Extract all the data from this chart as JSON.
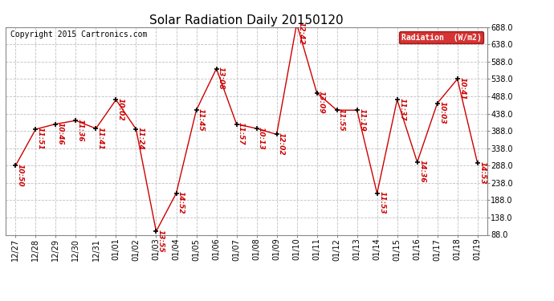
{
  "title": "Solar Radiation Daily 20150120",
  "copyright": "Copyright 2015 Cartronics.com",
  "legend_label": "Radiation  (W/m2)",
  "x_labels": [
    "12/27",
    "12/28",
    "12/29",
    "12/30",
    "12/31",
    "01/01",
    "01/02",
    "01/03",
    "01/04",
    "01/05",
    "01/06",
    "01/07",
    "01/08",
    "01/09",
    "01/10",
    "01/11",
    "01/12",
    "01/13",
    "01/14",
    "01/15",
    "01/16",
    "01/17",
    "01/18",
    "01/19"
  ],
  "values": [
    288,
    393,
    408,
    418,
    395,
    478,
    393,
    98,
    208,
    448,
    568,
    408,
    395,
    378,
    698,
    498,
    448,
    448,
    208,
    478,
    298,
    468,
    538,
    295
  ],
  "time_labels": [
    "10:50",
    "11:51",
    "10:46",
    "11:36",
    "11:41",
    "10:02",
    "11:24",
    "13:55",
    "14:52",
    "11:45",
    "13:08",
    "11:57",
    "10:13",
    "12:02",
    "12:42",
    "13:09",
    "11:55",
    "11:19",
    "11:53",
    "11:37",
    "14:36",
    "10:03",
    "10:41",
    "14:53"
  ],
  "ylim_min": 88,
  "ylim_max": 688,
  "yticks": [
    88.0,
    138.0,
    188.0,
    238.0,
    288.0,
    338.0,
    388.0,
    438.0,
    488.0,
    538.0,
    588.0,
    638.0,
    688.0
  ],
  "line_color": "#cc0000",
  "marker_color": "#000000",
  "bg_color": "#ffffff",
  "grid_color": "#c0c0c0",
  "title_fontsize": 11,
  "tick_fontsize": 7,
  "time_fontsize": 6.5,
  "copyright_fontsize": 7,
  "legend_bg": "#cc0000",
  "legend_fg": "#ffffff"
}
